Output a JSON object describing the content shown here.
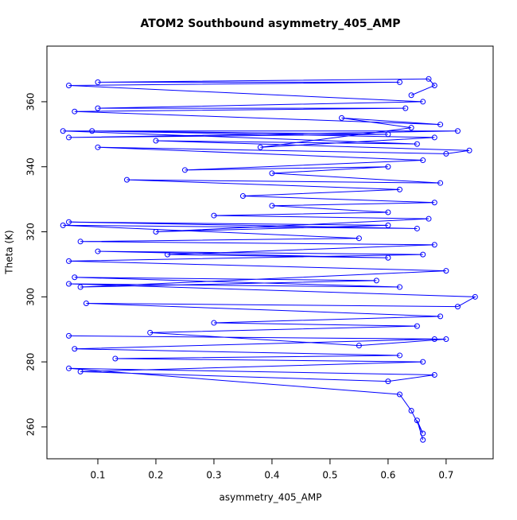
{
  "chart_data": {
    "type": "line",
    "title": "ATOM2 Southbound asymmetry_405_AMP",
    "x_label": "asymmetry_405_AMP",
    "y_label": "Theta (K)",
    "color": "#0000ff",
    "marker": "open-circle",
    "x": [
      0.66,
      0.65,
      0.66,
      0.64,
      0.62,
      0.05,
      0.68,
      0.6,
      0.07,
      0.66,
      0.13,
      0.62,
      0.06,
      0.68,
      0.05,
      0.7,
      0.55,
      0.19,
      0.65,
      0.3,
      0.69,
      0.08,
      0.72,
      0.75,
      0.05,
      0.62,
      0.06,
      0.58,
      0.07,
      0.7,
      0.05,
      0.66,
      0.1,
      0.6,
      0.22,
      0.68,
      0.07,
      0.55,
      0.04,
      0.65,
      0.05,
      0.6,
      0.2,
      0.67,
      0.3,
      0.6,
      0.4,
      0.68,
      0.35,
      0.62,
      0.15,
      0.69,
      0.4,
      0.6,
      0.25,
      0.66,
      0.1,
      0.7,
      0.74,
      0.2,
      0.65,
      0.04,
      0.72,
      0.05,
      0.6,
      0.09,
      0.68,
      0.38,
      0.64,
      0.52,
      0.69,
      0.06,
      0.63,
      0.1,
      0.66,
      0.05,
      0.62,
      0.1,
      0.67,
      0.68,
      0.64
    ],
    "values": [
      256,
      262,
      258,
      265,
      270,
      278,
      276,
      274,
      277,
      280,
      281,
      282,
      284,
      287,
      288,
      287,
      285,
      289,
      291,
      292,
      294,
      298,
      297,
      300,
      304,
      303,
      306,
      305,
      303,
      308,
      311,
      313,
      314,
      312,
      313,
      316,
      317,
      318,
      322,
      321,
      323,
      322,
      320,
      324,
      325,
      326,
      328,
      329,
      331,
      333,
      336,
      335,
      338,
      340,
      339,
      342,
      346,
      344,
      345,
      348,
      347,
      351,
      351,
      349,
      350,
      351,
      349,
      346,
      352,
      355,
      353,
      357,
      358,
      358,
      360,
      365,
      366,
      366,
      367,
      365,
      362
    ],
    "xlim": [
      0.0123,
      0.781
    ],
    "ylim": [
      250.2,
      377.1
    ],
    "xticks": [
      0.1,
      0.2,
      0.3,
      0.4,
      0.5,
      0.6,
      0.7
    ],
    "yticks": [
      260,
      280,
      300,
      320,
      340,
      360
    ]
  }
}
